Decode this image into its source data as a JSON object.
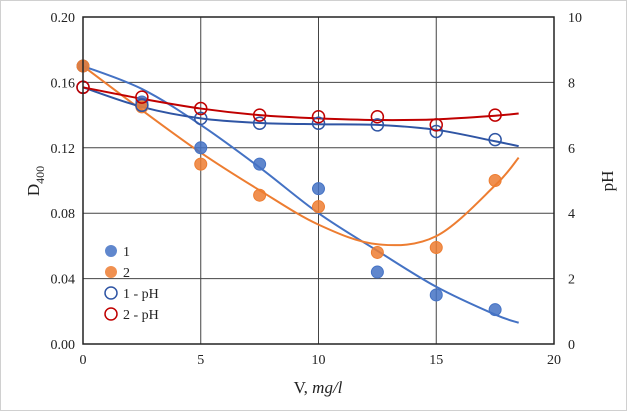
{
  "chart_data": {
    "type": "scatter",
    "xlabel": "V, ",
    "xlabel_unit": "mg/l",
    "ylabel_main": "D",
    "ylabel_sub": "400",
    "y2label": "pH",
    "xlim": [
      0,
      20
    ],
    "ylim": [
      0,
      0.2
    ],
    "y2lim": [
      0,
      10
    ],
    "xticks": [
      "0",
      "5",
      "10",
      "15",
      "20"
    ],
    "yticks": [
      "0.00",
      "0.04",
      "0.08",
      "0.12",
      "0.16",
      "0.20"
    ],
    "y2ticks": [
      "0",
      "2",
      "4",
      "6",
      "8",
      "10"
    ],
    "grid": true,
    "legend_position": "lower-left",
    "series": [
      {
        "name": "1",
        "axis": "left",
        "marker": "filled",
        "color": "#4472c4",
        "line_color": "#4472c4",
        "x": [
          0,
          2.5,
          5,
          7.5,
          10,
          12.5,
          15,
          17.5
        ],
        "y": [
          0.17,
          0.148,
          0.12,
          0.11,
          0.095,
          0.044,
          0.03,
          0.021
        ],
        "trend_x": [
          0,
          2.5,
          5,
          7.5,
          10,
          12.5,
          15,
          17.5,
          18.5
        ],
        "trend_y": [
          0.17,
          0.156,
          0.134,
          0.108,
          0.08,
          0.057,
          0.035,
          0.018,
          0.013
        ]
      },
      {
        "name": "2",
        "axis": "left",
        "marker": "filled",
        "color": "#ed7d31",
        "line_color": "#ed7d31",
        "x": [
          0,
          2.5,
          5,
          7.5,
          10,
          12.5,
          15,
          17.5
        ],
        "y": [
          0.17,
          0.145,
          0.11,
          0.091,
          0.084,
          0.056,
          0.059,
          0.1
        ],
        "trend_x": [
          0,
          2.5,
          5,
          7.5,
          10,
          12.5,
          15,
          17.5,
          18.5
        ],
        "trend_y": [
          0.17,
          0.143,
          0.117,
          0.094,
          0.073,
          0.061,
          0.066,
          0.097,
          0.114
        ]
      },
      {
        "name": "1 - pH",
        "axis": "right",
        "marker": "open",
        "color": "#2f55a4",
        "line_color": "#2f55a4",
        "x": [
          0,
          2.5,
          5,
          7.5,
          10,
          12.5,
          15,
          17.5
        ],
        "y": [
          7.85,
          7.3,
          6.9,
          6.75,
          6.75,
          6.7,
          6.5,
          6.25
        ],
        "trend_x": [
          0,
          2.5,
          5,
          7.5,
          10,
          12.5,
          15,
          17.5,
          18.5
        ],
        "trend_y": [
          7.85,
          7.25,
          6.9,
          6.76,
          6.72,
          6.7,
          6.55,
          6.2,
          6.05
        ]
      },
      {
        "name": "2 - pH",
        "axis": "right",
        "marker": "open",
        "color": "#c00000",
        "line_color": "#c00000",
        "x": [
          0,
          2.5,
          5,
          7.5,
          10,
          12.5,
          15,
          17.5
        ],
        "y": [
          7.85,
          7.55,
          7.2,
          7.0,
          6.95,
          6.95,
          6.7,
          7.0
        ],
        "trend_x": [
          0,
          2.5,
          5,
          7.5,
          10,
          12.5,
          15,
          17.5,
          18.5
        ],
        "trend_y": [
          7.85,
          7.5,
          7.2,
          7.0,
          6.9,
          6.85,
          6.87,
          6.98,
          7.05
        ]
      }
    ]
  }
}
